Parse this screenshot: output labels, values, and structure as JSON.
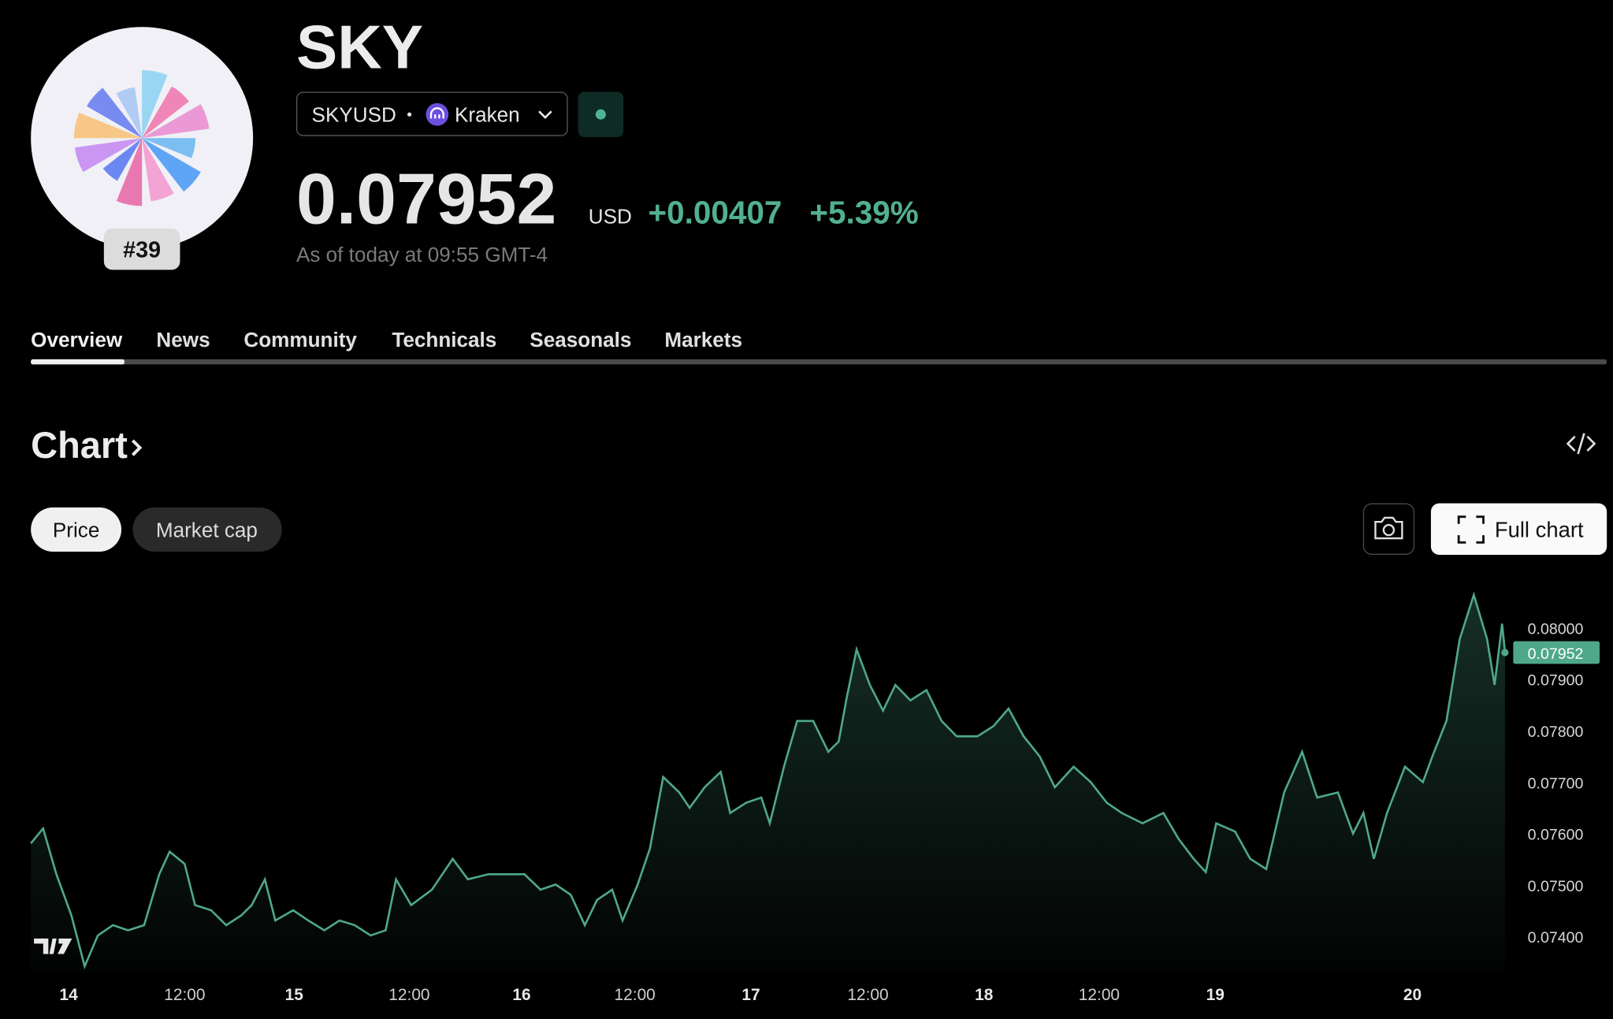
{
  "logo": {
    "rank": "#39"
  },
  "header": {
    "title": "SKY",
    "symbol": "SKYUSD",
    "exchange": "Kraken",
    "price": "0.07952",
    "currency": "USD",
    "change": "+0.00407",
    "change_percent": "+5.39%",
    "as_of": "As of today at 09:55 GMT-4"
  },
  "tabs": [
    "Overview",
    "News",
    "Community",
    "Technicals",
    "Seasonals",
    "Markets"
  ],
  "section": {
    "title": "Chart",
    "toggles": [
      "Price",
      "Market cap"
    ],
    "full_chart": "Full chart"
  },
  "chart_data": {
    "type": "area",
    "color": "#4fa88a",
    "x": [
      -4.0,
      -2.7,
      -1.3,
      0.3,
      1.7,
      3.1,
      4.7,
      6.3,
      8.0,
      9.6,
      10.7,
      12.3,
      13.4,
      15.1,
      16.7,
      18.3,
      19.4,
      20.8,
      21.9,
      23.8,
      25.4,
      27.1,
      28.7,
      30.3,
      32.0,
      33.6,
      34.7,
      36.3,
      38.5,
      40.7,
      42.3,
      44.5,
      46.7,
      48.3,
      50.0,
      51.6,
      53.2,
      54.7,
      56.0,
      57.6,
      58.7,
      60.3,
      61.6,
      63.0,
      64.7,
      65.8,
      67.4,
      69.1,
      70.1,
      71.8,
      73.4,
      74.3,
      75.8,
      77.2,
      78.9,
      80.5,
      81.6,
      82.4,
      83.5,
      84.9,
      86.3,
      87.6,
      89.2,
      90.9,
      92.5,
      94.1,
      96.3,
      98.0,
      99.6,
      101.2,
      102.9,
      104.5,
      106.5,
      108.3,
      110.0,
      111.6,
      113.8,
      116.0,
      117.6,
      119.2,
      120.5,
      121.6,
      123.6,
      125.2,
      126.9,
      128.8,
      130.7,
      132.3,
      134.5,
      136.1,
      137.2,
      138.3,
      139.7,
      141.6,
      143.5,
      144.5,
      146.0,
      147.4,
      148.9,
      150.3,
      151.1,
      151.9,
      152.2
    ],
    "values": [
      0.07581,
      0.0761,
      0.07521,
      0.07441,
      0.07342,
      0.07402,
      0.07422,
      0.07412,
      0.07422,
      0.07521,
      0.07565,
      0.07541,
      0.07461,
      0.07451,
      0.07422,
      0.07441,
      0.07461,
      0.07511,
      0.07431,
      0.07451,
      0.07431,
      0.07412,
      0.07431,
      0.07422,
      0.07402,
      0.07412,
      0.07511,
      0.07461,
      0.07491,
      0.07551,
      0.07511,
      0.07521,
      0.07521,
      0.07521,
      0.07491,
      0.07501,
      0.07481,
      0.07422,
      0.07471,
      0.07491,
      0.07431,
      0.07501,
      0.07571,
      0.0771,
      0.0768,
      0.0765,
      0.0769,
      0.0772,
      0.0764,
      0.0766,
      0.0767,
      0.0762,
      0.0773,
      0.07819,
      0.07819,
      0.07759,
      0.07779,
      0.07859,
      0.07958,
      0.07889,
      0.07839,
      0.07889,
      0.07859,
      0.07879,
      0.07819,
      0.07789,
      0.07789,
      0.07809,
      0.07843,
      0.07789,
      0.0775,
      0.0769,
      0.0773,
      0.077,
      0.0766,
      0.0764,
      0.0762,
      0.0764,
      0.0759,
      0.07551,
      0.07525,
      0.0762,
      0.07604,
      0.07551,
      0.07531,
      0.0768,
      0.07759,
      0.0767,
      0.0768,
      0.076,
      0.0764,
      0.07551,
      0.0764,
      0.0773,
      0.077,
      0.0775,
      0.07819,
      0.07978,
      0.08064,
      0.07978,
      0.07889,
      0.08008,
      0.07952
    ],
    "xlim": [
      -4.0,
      152.2
    ],
    "ylim": [
      0.0733,
      0.0808
    ],
    "xticks": [
      {
        "value": 0,
        "label": "14"
      },
      {
        "value": 12.3,
        "label": "12:00"
      },
      {
        "value": 23.9,
        "label": "15"
      },
      {
        "value": 36.1,
        "label": "12:00"
      },
      {
        "value": 48.0,
        "label": "16"
      },
      {
        "value": 60.0,
        "label": "12:00"
      },
      {
        "value": 72.3,
        "label": "17"
      },
      {
        "value": 84.7,
        "label": "12:00"
      },
      {
        "value": 97.0,
        "label": "18"
      },
      {
        "value": 109.2,
        "label": "12:00"
      },
      {
        "value": 121.5,
        "label": "19"
      },
      {
        "value": 142.4,
        "label": "20"
      }
    ],
    "yticks": [
      {
        "value": 0.074,
        "label": "0.07400"
      },
      {
        "value": 0.075,
        "label": "0.07500"
      },
      {
        "value": 0.076,
        "label": "0.07600"
      },
      {
        "value": 0.077,
        "label": "0.07700"
      },
      {
        "value": 0.078,
        "label": "0.07800"
      },
      {
        "value": 0.079,
        "label": "0.07900"
      },
      {
        "value": 0.08,
        "label": "0.08000"
      }
    ],
    "last_price": {
      "value": 0.07952,
      "label": "0.07952"
    }
  }
}
